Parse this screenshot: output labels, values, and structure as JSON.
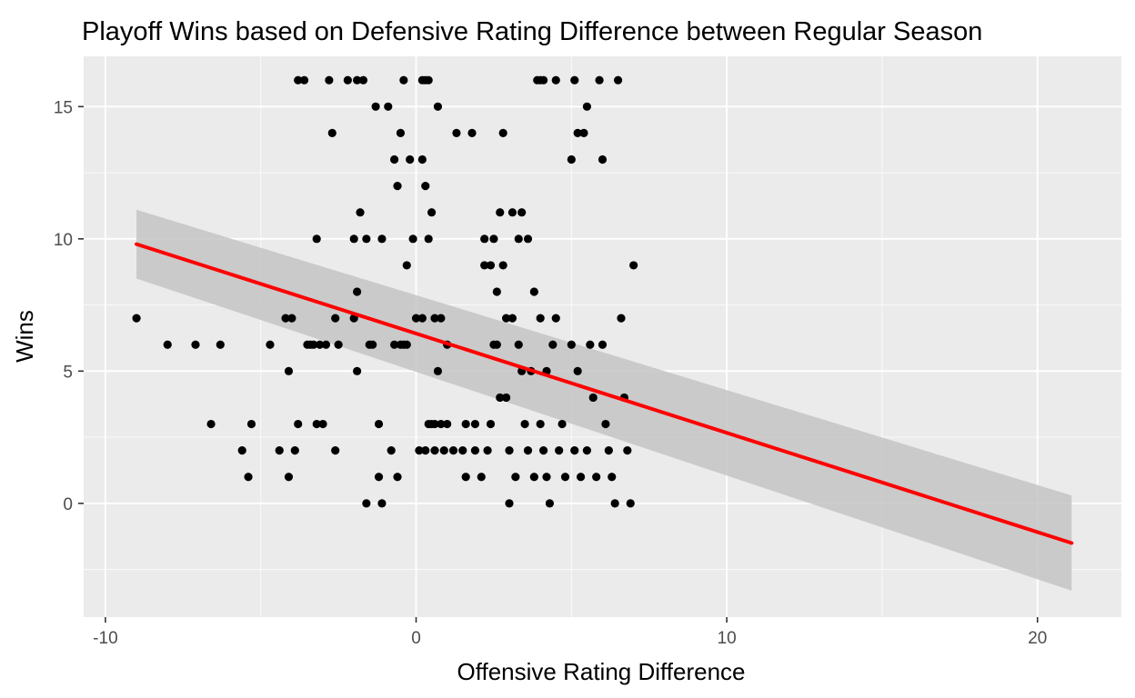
{
  "chart_data": {
    "type": "scatter",
    "title": "Playoff Wins based on Defensive Rating Difference between Regular Season",
    "xlabel": "Offensive Rating Difference",
    "ylabel": "Wins",
    "xlim": [
      -10.7,
      22.7
    ],
    "ylim": [
      -4.3,
      16.9
    ],
    "x_ticks": [
      -10,
      0,
      10,
      20
    ],
    "x_tick_labels": [
      "-10",
      "0",
      "10",
      "20"
    ],
    "y_ticks": [
      0,
      5,
      10,
      15
    ],
    "y_tick_labels": [
      "0",
      "5",
      "10",
      "15"
    ],
    "grid": true,
    "legend": "none",
    "colors": {
      "panel_background": "#ebebeb",
      "grid_major": "#ffffff",
      "points": "#000000",
      "fit_line": "#ff0000",
      "confidence_band": "#c4c4c4"
    },
    "fit": {
      "method": "linear regression with confidence band",
      "x": [
        -9.0,
        21.1
      ],
      "y": [
        9.8,
        -1.5
      ],
      "band_lower": [
        8.5,
        -3.3
      ],
      "band_upper": [
        11.1,
        0.3
      ]
    },
    "points": [
      {
        "x": -9.0,
        "y": 7
      },
      {
        "x": -8.0,
        "y": 6
      },
      {
        "x": -7.1,
        "y": 6
      },
      {
        "x": -6.6,
        "y": 3
      },
      {
        "x": -6.3,
        "y": 6
      },
      {
        "x": -5.6,
        "y": 2
      },
      {
        "x": -5.4,
        "y": 1
      },
      {
        "x": -5.3,
        "y": 3
      },
      {
        "x": -4.7,
        "y": 6
      },
      {
        "x": -4.4,
        "y": 2
      },
      {
        "x": -4.2,
        "y": 7
      },
      {
        "x": -4.1,
        "y": 5
      },
      {
        "x": -4.1,
        "y": 1
      },
      {
        "x": -4.0,
        "y": 7
      },
      {
        "x": -3.9,
        "y": 2
      },
      {
        "x": -3.8,
        "y": 3
      },
      {
        "x": -3.8,
        "y": 16
      },
      {
        "x": -3.6,
        "y": 16
      },
      {
        "x": -3.5,
        "y": 6
      },
      {
        "x": -3.4,
        "y": 6
      },
      {
        "x": -3.3,
        "y": 6
      },
      {
        "x": -3.2,
        "y": 10
      },
      {
        "x": -3.2,
        "y": 3
      },
      {
        "x": -3.1,
        "y": 6
      },
      {
        "x": -3.0,
        "y": 3
      },
      {
        "x": -2.9,
        "y": 6
      },
      {
        "x": -2.8,
        "y": 16
      },
      {
        "x": -2.7,
        "y": 14
      },
      {
        "x": -2.6,
        "y": 7
      },
      {
        "x": -2.6,
        "y": 2
      },
      {
        "x": -2.5,
        "y": 6
      },
      {
        "x": -2.2,
        "y": 16
      },
      {
        "x": -2.0,
        "y": 10
      },
      {
        "x": -2.0,
        "y": 7
      },
      {
        "x": -1.9,
        "y": 16
      },
      {
        "x": -1.9,
        "y": 8
      },
      {
        "x": -1.9,
        "y": 5
      },
      {
        "x": -1.8,
        "y": 11
      },
      {
        "x": -1.7,
        "y": 16
      },
      {
        "x": -1.6,
        "y": 10
      },
      {
        "x": -1.6,
        "y": 0
      },
      {
        "x": -1.5,
        "y": 6
      },
      {
        "x": -1.4,
        "y": 6
      },
      {
        "x": -1.3,
        "y": 15
      },
      {
        "x": -1.2,
        "y": 3
      },
      {
        "x": -1.2,
        "y": 1
      },
      {
        "x": -1.1,
        "y": 10
      },
      {
        "x": -1.1,
        "y": 0
      },
      {
        "x": -0.9,
        "y": 15
      },
      {
        "x": -0.8,
        "y": 2
      },
      {
        "x": -0.7,
        "y": 13
      },
      {
        "x": -0.7,
        "y": 6
      },
      {
        "x": -0.6,
        "y": 12
      },
      {
        "x": -0.6,
        "y": 1
      },
      {
        "x": -0.5,
        "y": 14
      },
      {
        "x": -0.5,
        "y": 6
      },
      {
        "x": -0.4,
        "y": 16
      },
      {
        "x": -0.4,
        "y": 6
      },
      {
        "x": -0.3,
        "y": 9
      },
      {
        "x": -0.3,
        "y": 6
      },
      {
        "x": -0.2,
        "y": 13
      },
      {
        "x": -0.1,
        "y": 10
      },
      {
        "x": 0.0,
        "y": 7
      },
      {
        "x": 0.1,
        "y": 2
      },
      {
        "x": 0.2,
        "y": 16
      },
      {
        "x": 0.2,
        "y": 13
      },
      {
        "x": 0.2,
        "y": 7
      },
      {
        "x": 0.3,
        "y": 16
      },
      {
        "x": 0.3,
        "y": 12
      },
      {
        "x": 0.3,
        "y": 2
      },
      {
        "x": 0.4,
        "y": 16
      },
      {
        "x": 0.4,
        "y": 10
      },
      {
        "x": 0.4,
        "y": 3
      },
      {
        "x": 0.5,
        "y": 11
      },
      {
        "x": 0.5,
        "y": 3
      },
      {
        "x": 0.6,
        "y": 7
      },
      {
        "x": 0.6,
        "y": 3
      },
      {
        "x": 0.6,
        "y": 2
      },
      {
        "x": 0.7,
        "y": 15
      },
      {
        "x": 0.7,
        "y": 5
      },
      {
        "x": 0.8,
        "y": 7
      },
      {
        "x": 0.8,
        "y": 3
      },
      {
        "x": 0.9,
        "y": 2
      },
      {
        "x": 1.0,
        "y": 6
      },
      {
        "x": 1.0,
        "y": 3
      },
      {
        "x": 1.2,
        "y": 2
      },
      {
        "x": 1.3,
        "y": 14
      },
      {
        "x": 1.5,
        "y": 2
      },
      {
        "x": 1.6,
        "y": 3
      },
      {
        "x": 1.6,
        "y": 1
      },
      {
        "x": 1.8,
        "y": 14
      },
      {
        "x": 1.9,
        "y": 3
      },
      {
        "x": 1.9,
        "y": 2
      },
      {
        "x": 2.1,
        "y": 1
      },
      {
        "x": 2.2,
        "y": 10
      },
      {
        "x": 2.2,
        "y": 9
      },
      {
        "x": 2.3,
        "y": 2
      },
      {
        "x": 2.4,
        "y": 9
      },
      {
        "x": 2.4,
        "y": 3
      },
      {
        "x": 2.5,
        "y": 10
      },
      {
        "x": 2.5,
        "y": 6
      },
      {
        "x": 2.6,
        "y": 8
      },
      {
        "x": 2.6,
        "y": 6
      },
      {
        "x": 2.7,
        "y": 11
      },
      {
        "x": 2.7,
        "y": 4
      },
      {
        "x": 2.8,
        "y": 14
      },
      {
        "x": 2.8,
        "y": 9
      },
      {
        "x": 2.9,
        "y": 7
      },
      {
        "x": 2.9,
        "y": 4
      },
      {
        "x": 3.0,
        "y": 2
      },
      {
        "x": 3.0,
        "y": 0
      },
      {
        "x": 3.1,
        "y": 11
      },
      {
        "x": 3.1,
        "y": 7
      },
      {
        "x": 3.2,
        "y": 1
      },
      {
        "x": 3.3,
        "y": 10
      },
      {
        "x": 3.3,
        "y": 6
      },
      {
        "x": 3.4,
        "y": 11
      },
      {
        "x": 3.4,
        "y": 5
      },
      {
        "x": 3.5,
        "y": 3
      },
      {
        "x": 3.6,
        "y": 10
      },
      {
        "x": 3.6,
        "y": 2
      },
      {
        "x": 3.7,
        "y": 5
      },
      {
        "x": 3.8,
        "y": 8
      },
      {
        "x": 3.8,
        "y": 1
      },
      {
        "x": 3.9,
        "y": 16
      },
      {
        "x": 4.0,
        "y": 16
      },
      {
        "x": 4.0,
        "y": 7
      },
      {
        "x": 4.0,
        "y": 3
      },
      {
        "x": 4.1,
        "y": 16
      },
      {
        "x": 4.1,
        "y": 2
      },
      {
        "x": 4.2,
        "y": 5
      },
      {
        "x": 4.2,
        "y": 1
      },
      {
        "x": 4.3,
        "y": 0
      },
      {
        "x": 4.4,
        "y": 6
      },
      {
        "x": 4.5,
        "y": 16
      },
      {
        "x": 4.5,
        "y": 7
      },
      {
        "x": 4.6,
        "y": 2
      },
      {
        "x": 4.7,
        "y": 3
      },
      {
        "x": 4.8,
        "y": 1
      },
      {
        "x": 5.0,
        "y": 13
      },
      {
        "x": 5.0,
        "y": 6
      },
      {
        "x": 5.1,
        "y": 16
      },
      {
        "x": 5.1,
        "y": 2
      },
      {
        "x": 5.2,
        "y": 14
      },
      {
        "x": 5.2,
        "y": 5
      },
      {
        "x": 5.3,
        "y": 1
      },
      {
        "x": 5.4,
        "y": 14
      },
      {
        "x": 5.5,
        "y": 15
      },
      {
        "x": 5.5,
        "y": 2
      },
      {
        "x": 5.6,
        "y": 6
      },
      {
        "x": 5.7,
        "y": 4
      },
      {
        "x": 5.8,
        "y": 1
      },
      {
        "x": 5.9,
        "y": 16
      },
      {
        "x": 6.0,
        "y": 13
      },
      {
        "x": 6.0,
        "y": 6
      },
      {
        "x": 6.1,
        "y": 3
      },
      {
        "x": 6.2,
        "y": 2
      },
      {
        "x": 6.3,
        "y": 1
      },
      {
        "x": 6.4,
        "y": 0
      },
      {
        "x": 6.5,
        "y": 16
      },
      {
        "x": 6.6,
        "y": 7
      },
      {
        "x": 6.7,
        "y": 4
      },
      {
        "x": 6.8,
        "y": 2
      },
      {
        "x": 6.9,
        "y": 0
      },
      {
        "x": 7.0,
        "y": 9
      }
    ]
  }
}
